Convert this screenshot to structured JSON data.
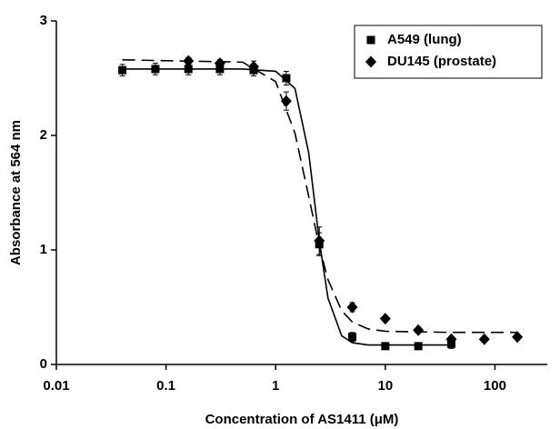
{
  "chart_data": {
    "type": "scatter",
    "xlabel": "Concentration of AS1411 (μM)",
    "ylabel": "Absorbance at 564 nm",
    "xscale": "log",
    "xlim": [
      0.01,
      300
    ],
    "xticks": [
      0.01,
      0.1,
      1,
      10,
      100
    ],
    "ylim": [
      0,
      3
    ],
    "yticks": [
      0,
      1,
      2,
      3
    ],
    "legend": "upper right",
    "series": [
      {
        "name": "A549 (lung)",
        "color": "#000000",
        "marker": "square",
        "x": [
          0.04,
          0.08,
          0.16,
          0.31,
          0.63,
          1.25,
          2.5,
          5,
          10,
          20,
          40
        ],
        "values": [
          2.57,
          2.58,
          2.58,
          2.58,
          2.57,
          2.5,
          1.05,
          0.24,
          0.16,
          0.16,
          0.18
        ],
        "errors": [
          0.05,
          0.05,
          0.05,
          0.05,
          0.05,
          0.06,
          0.1,
          0.04,
          0.02,
          0.02,
          0.04
        ],
        "fit": {
          "dash": false,
          "x": [
            0.04,
            0.5,
            1,
            1.5,
            2,
            2.5,
            3,
            4,
            5,
            7,
            10,
            40
          ],
          "values": [
            2.58,
            2.58,
            2.56,
            2.41,
            1.85,
            1.08,
            0.58,
            0.25,
            0.19,
            0.17,
            0.17,
            0.17
          ]
        }
      },
      {
        "name": "DU145 (prostate)",
        "color": "#000000",
        "marker": "diamond",
        "x": [
          0.16,
          0.31,
          0.63,
          1.25,
          2.5,
          5,
          10,
          20,
          40,
          80,
          160
        ],
        "values": [
          2.65,
          2.63,
          2.6,
          2.3,
          1.08,
          0.5,
          0.4,
          0.3,
          0.22,
          0.22,
          0.24
        ],
        "errors": [
          0.03,
          0.03,
          0.05,
          0.08,
          0.12,
          0.04,
          0.02,
          0.02,
          0.02,
          0.02,
          0.02
        ],
        "fit": {
          "dash": true,
          "x": [
            0.04,
            0.5,
            1,
            1.5,
            2,
            2.5,
            3,
            4,
            5,
            7,
            10,
            40,
            160
          ],
          "values": [
            2.66,
            2.64,
            2.47,
            2.02,
            1.47,
            1.03,
            0.74,
            0.47,
            0.37,
            0.31,
            0.29,
            0.28,
            0.28
          ]
        }
      }
    ]
  }
}
